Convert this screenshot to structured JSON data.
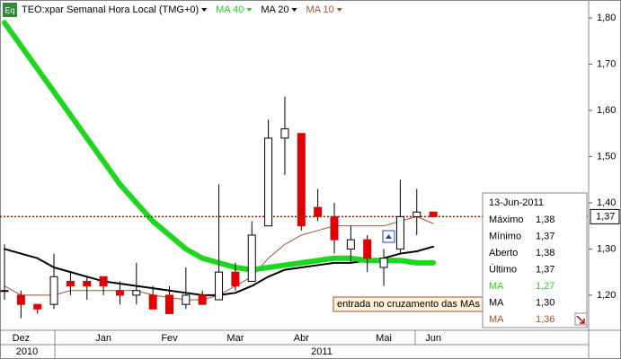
{
  "chart_data": {
    "type": "candlestick",
    "title": "TEO:xpar Semanal Hora Local (TMG+0)",
    "icon": "Eq",
    "indicators": [
      {
        "label": "MA 40",
        "color": "#1ed61e"
      },
      {
        "label": "MA 20",
        "color": "#000000"
      },
      {
        "label": "MA 10",
        "color": "#a0522d"
      }
    ],
    "categories": [
      null,
      "Dez",
      null,
      null,
      null,
      null,
      "Jan",
      null,
      null,
      null,
      "Fev",
      null,
      null,
      null,
      "Mar",
      null,
      null,
      null,
      "Abr",
      null,
      null,
      null,
      null,
      "Mai",
      null,
      null,
      "Jun"
    ],
    "years": [
      "2010",
      "2011"
    ],
    "open": [
      1.21,
      1.2,
      1.18,
      1.18,
      1.23,
      1.23,
      1.24,
      1.21,
      1.2,
      1.2,
      1.2,
      1.18,
      1.2,
      1.19,
      1.25,
      1.23,
      1.35,
      1.54,
      1.55,
      1.39,
      1.37,
      1.3,
      1.32,
      1.26,
      1.3,
      1.37,
      1.38
    ],
    "high": [
      1.31,
      1.21,
      1.18,
      1.29,
      1.25,
      1.24,
      1.24,
      1.23,
      1.27,
      1.22,
      1.22,
      1.26,
      1.21,
      1.44,
      1.27,
      1.36,
      1.58,
      1.63,
      1.55,
      1.43,
      1.4,
      1.35,
      1.33,
      1.3,
      1.45,
      1.43,
      1.38
    ],
    "low": [
      1.19,
      1.15,
      1.16,
      1.17,
      1.2,
      1.19,
      1.2,
      1.18,
      1.18,
      1.17,
      1.16,
      1.17,
      1.18,
      1.19,
      1.21,
      1.23,
      1.35,
      1.46,
      1.34,
      1.36,
      1.29,
      1.27,
      1.25,
      1.22,
      1.29,
      1.33,
      1.37
    ],
    "close": [
      1.21,
      1.18,
      1.17,
      1.24,
      1.22,
      1.22,
      1.22,
      1.2,
      1.21,
      1.17,
      1.16,
      1.2,
      1.18,
      1.25,
      1.22,
      1.33,
      1.54,
      1.56,
      1.35,
      1.37,
      1.32,
      1.32,
      1.28,
      1.28,
      1.37,
      1.38,
      1.37
    ],
    "up_color": "#ffffff",
    "down_color": "#e00000",
    "series": [
      {
        "name": "MA 40",
        "color": "#1ed61e",
        "width": 6,
        "values": [
          1.79,
          1.74,
          1.69,
          1.64,
          1.59,
          1.54,
          1.49,
          1.44,
          1.4,
          1.36,
          1.33,
          1.3,
          1.28,
          1.27,
          1.26,
          1.255,
          1.26,
          1.265,
          1.27,
          1.275,
          1.28,
          1.28,
          1.275,
          1.275,
          1.275,
          1.27,
          1.27
        ]
      },
      {
        "name": "MA 20",
        "color": "#000000",
        "width": 2,
        "values": [
          1.3,
          1.29,
          1.28,
          1.26,
          1.25,
          1.24,
          1.23,
          1.225,
          1.22,
          1.215,
          1.21,
          1.205,
          1.2,
          1.2,
          1.205,
          1.22,
          1.24,
          1.255,
          1.26,
          1.265,
          1.27,
          1.27,
          1.275,
          1.28,
          1.29,
          1.295,
          1.305
        ]
      },
      {
        "name": "MA 10",
        "color": "#a0522d",
        "width": 1,
        "values": [
          1.22,
          1.2,
          1.2,
          1.2,
          1.21,
          1.21,
          1.21,
          1.21,
          1.21,
          1.2,
          1.195,
          1.19,
          1.19,
          1.2,
          1.22,
          1.24,
          1.28,
          1.31,
          1.33,
          1.34,
          1.35,
          1.35,
          1.35,
          1.35,
          1.36,
          1.37,
          1.355
        ]
      }
    ],
    "ylim": [
      1.124,
      1.839
    ],
    "yticks": [
      {
        "value": 1.2,
        "label": "1,20"
      },
      {
        "value": 1.3,
        "label": "1,30"
      },
      {
        "value": 1.4,
        "label": "1,40"
      },
      {
        "value": 1.5,
        "label": "1,50"
      },
      {
        "value": 1.6,
        "label": "1,60"
      },
      {
        "value": 1.7,
        "label": "1,70"
      },
      {
        "value": 1.8,
        "label": "1,80"
      }
    ],
    "last_price": {
      "value": 1.37,
      "label": "1,37"
    },
    "annotation": "entrada no cruzamento das MAs",
    "info": {
      "date": "13-Jun-2011",
      "rows": [
        {
          "label": "Máximo",
          "value": "1,38"
        },
        {
          "label": "Mínimo",
          "value": "1,37"
        },
        {
          "label": "Aberto",
          "value": "1,38"
        },
        {
          "label": "Último",
          "value": "1,37"
        },
        {
          "label": "MA",
          "value": "1,27",
          "color": "#1ed61e"
        },
        {
          "label": "MA",
          "value": "1,30",
          "color": "#000000"
        },
        {
          "label": "MA",
          "value": "1,36",
          "color": "#a0522d"
        }
      ]
    }
  }
}
